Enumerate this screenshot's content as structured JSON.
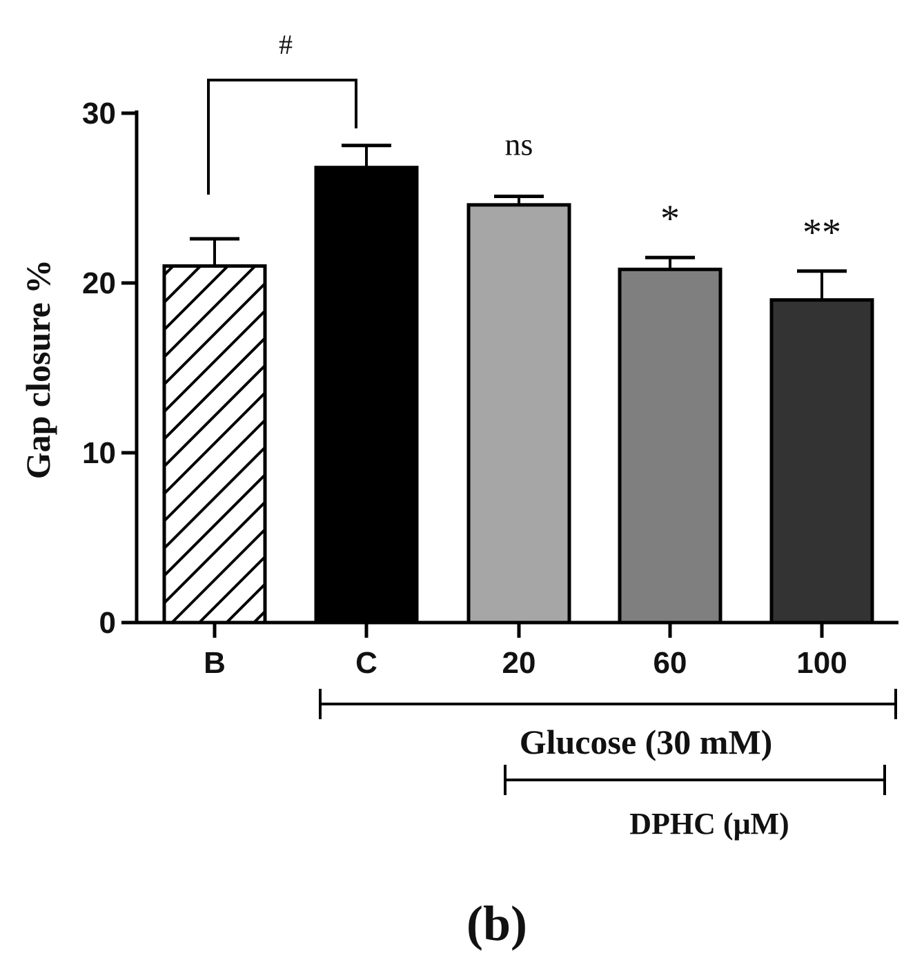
{
  "chart_data": {
    "type": "bar",
    "ylabel": "Gap closure %",
    "ylim": [
      0,
      30
    ],
    "yticks": [
      0,
      10,
      20,
      30
    ],
    "categories": [
      "B",
      "C",
      "20",
      "60",
      "100"
    ],
    "values": [
      21.0,
      26.8,
      24.6,
      20.8,
      19.0
    ],
    "errors": [
      1.6,
      1.3,
      0.5,
      0.7,
      1.7
    ],
    "fills": [
      "hatch",
      "#000000",
      "#a6a6a6",
      "#7f7f7f",
      "#333333"
    ],
    "significance": [
      "",
      "",
      "ns",
      "*",
      "**"
    ],
    "comparison_label": "#",
    "groups": [
      {
        "label": "Glucose (30 mM)"
      },
      {
        "label": "DPHC (μM)"
      }
    ],
    "panel_label": "(b)"
  }
}
